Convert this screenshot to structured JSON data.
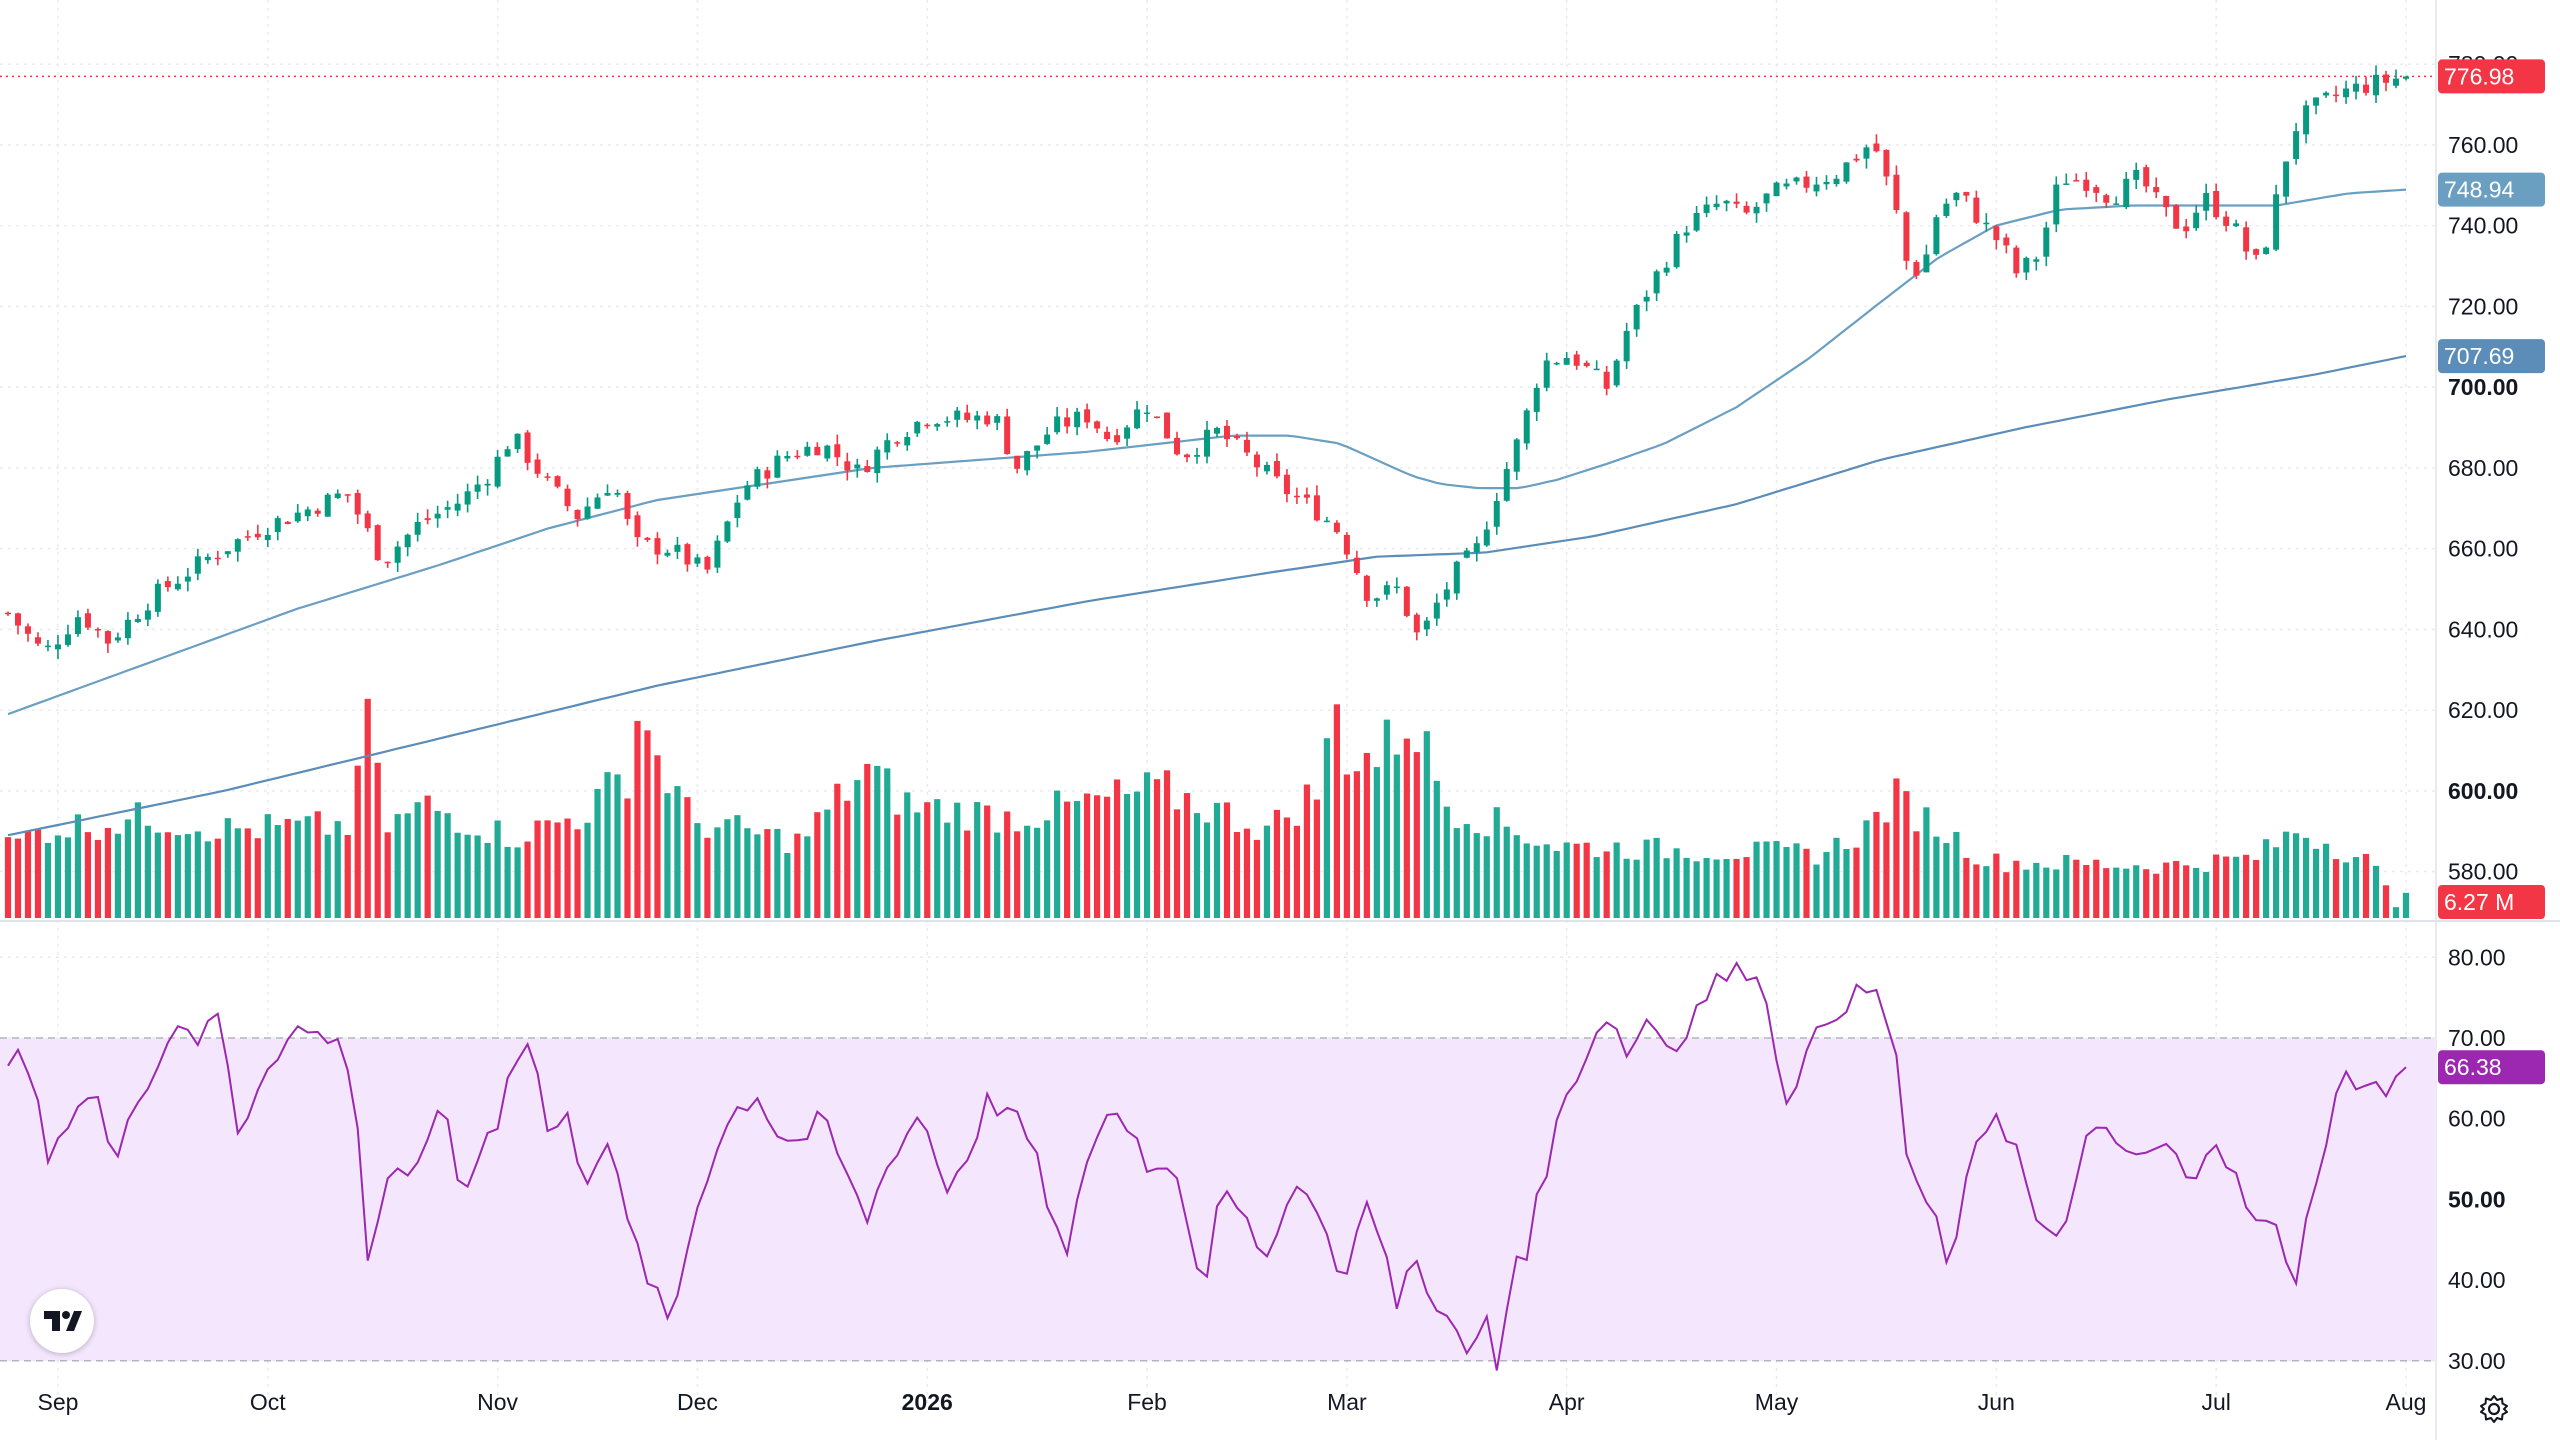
{
  "chart_data": [
    {
      "type": "candlestick",
      "pane": "price",
      "ylim": [
        568,
        786
      ],
      "y_ticks": [
        580,
        600,
        620,
        640,
        660,
        680,
        700,
        720,
        740,
        760,
        780
      ],
      "y_tick_labels": [
        "580.00",
        "600.00",
        "620.00",
        "640.00",
        "660.00",
        "680.00",
        "700.00",
        "720.00",
        "740.00",
        "760.00",
        "780.00"
      ],
      "bold_tick_labels": [
        "600.00",
        "700.00"
      ],
      "x_labels": [
        "Sep",
        "Oct",
        "Nov",
        "Dec",
        "2026",
        "Feb",
        "Mar",
        "Apr",
        "May",
        "Jun",
        "Jul",
        "Aug"
      ],
      "bold_x_labels": [
        "2026"
      ],
      "x_label_dates": [
        "2025-09-02",
        "2025-10-01",
        "2025-11-03",
        "2025-12-01",
        "2026-01-02",
        "2026-02-02",
        "2026-03-02",
        "2026-04-01",
        "2026-05-01",
        "2026-06-01",
        "2026-07-01",
        "2026-08-03"
      ],
      "trading_days": 241,
      "ohlc_close_anchors": [
        [
          0,
          644
        ],
        [
          5,
          634
        ],
        [
          10,
          644
        ],
        [
          14,
          637
        ],
        [
          20,
          648
        ],
        [
          28,
          658
        ],
        [
          35,
          665
        ],
        [
          42,
          670
        ],
        [
          47,
          674
        ],
        [
          52,
          657
        ],
        [
          57,
          666
        ],
        [
          63,
          672
        ],
        [
          67,
          679
        ],
        [
          70,
          688
        ],
        [
          75,
          676
        ],
        [
          79,
          668
        ],
        [
          84,
          677
        ],
        [
          87,
          661
        ],
        [
          92,
          660
        ],
        [
          97,
          654
        ],
        [
          102,
          675
        ],
        [
          108,
          683
        ],
        [
          113,
          686
        ],
        [
          118,
          679
        ],
        [
          123,
          688
        ],
        [
          128,
          693
        ],
        [
          133,
          692
        ],
        [
          137,
          693
        ],
        [
          140,
          680
        ],
        [
          145,
          690
        ],
        [
          150,
          693
        ],
        [
          153,
          687
        ],
        [
          158,
          696
        ],
        [
          163,
          683
        ],
        [
          168,
          689
        ],
        [
          172,
          683
        ],
        [
          177,
          675
        ],
        [
          182,
          669
        ],
        [
          185,
          664
        ],
        [
          189,
          648
        ],
        [
          193,
          650
        ],
        [
          196,
          637
        ],
        [
          198,
          645
        ],
        [
          201,
          654
        ],
        [
          204,
          660
        ],
        [
          207,
          675
        ],
        [
          210,
          688
        ],
        [
          213,
          706
        ],
        [
          217,
          708
        ],
        [
          222,
          700
        ],
        [
          225,
          715
        ],
        [
          228,
          725
        ],
        [
          233,
          740
        ],
        [
          238,
          746
        ],
        [
          241,
          742
        ],
        [
          245,
          748
        ],
        [
          249,
          750
        ],
        [
          254,
          753
        ],
        [
          259,
          761
        ],
        [
          262,
          745
        ],
        [
          264,
          728
        ],
        [
          266,
          730
        ],
        [
          268,
          744
        ],
        [
          271,
          748
        ],
        [
          274,
          741
        ],
        [
          277,
          735
        ],
        [
          279,
          728
        ],
        [
          282,
          733
        ],
        [
          285,
          752
        ],
        [
          289,
          751
        ],
        [
          292,
          747
        ],
        [
          296,
          752
        ],
        [
          299,
          744
        ],
        [
          302,
          739
        ],
        [
          305,
          747
        ],
        [
          309,
          740
        ],
        [
          312,
          730
        ],
        [
          314,
          738
        ],
        [
          316,
          755
        ],
        [
          318,
          766
        ],
        [
          321,
          770
        ],
        [
          324,
          773
        ],
        [
          328,
          775
        ],
        [
          333,
          776.98
        ]
      ],
      "max_high": 778.5,
      "min_low": 630,
      "last_close": 776.98,
      "last_close_label": "776.98",
      "colors": {
        "up": "#26a69a",
        "up_candle": "#089981",
        "down": "#f23645",
        "ma": "#6a9fc1"
      },
      "candle_style": {
        "up_fill": "#089981",
        "down_fill": "#f23645"
      },
      "moving_averages": [
        {
          "period": 50,
          "last_value": 748.94,
          "label": "748.94",
          "color": "#6a9fc1",
          "anchors": [
            [
              0,
              619
            ],
            [
              20,
              632
            ],
            [
              40,
              645
            ],
            [
              60,
              656
            ],
            [
              75,
              665
            ],
            [
              90,
              672
            ],
            [
              105,
              676
            ],
            [
              120,
              680
            ],
            [
              135,
              682
            ],
            [
              150,
              684
            ],
            [
              160,
              686
            ],
            [
              170,
              688
            ],
            [
              178,
              688
            ],
            [
              185,
              686
            ],
            [
              190,
              682
            ],
            [
              195,
              678
            ],
            [
              199,
              676
            ],
            [
              204,
              675
            ],
            [
              210,
              675
            ],
            [
              215,
              677
            ],
            [
              222,
              681
            ],
            [
              230,
              686
            ],
            [
              240,
              695
            ],
            [
              250,
              707
            ],
            [
              260,
              721
            ],
            [
              268,
              732
            ],
            [
              276,
              740
            ],
            [
              285,
              744
            ],
            [
              295,
              745
            ],
            [
              305,
              745
            ],
            [
              315,
              745
            ],
            [
              325,
              748
            ],
            [
              333,
              748.94
            ]
          ]
        },
        {
          "period": 200,
          "last_value": 707.69,
          "label": "707.69",
          "color": "#5b8db8",
          "anchors": [
            [
              0,
              589
            ],
            [
              30,
              600
            ],
            [
              60,
              613
            ],
            [
              90,
              626
            ],
            [
              120,
              637
            ],
            [
              150,
              647
            ],
            [
              175,
              654
            ],
            [
              190,
              658
            ],
            [
              205,
              659
            ],
            [
              220,
              663
            ],
            [
              240,
              671
            ],
            [
              260,
              682
            ],
            [
              280,
              690
            ],
            [
              300,
              697
            ],
            [
              320,
              703
            ],
            [
              333,
              707.69
            ]
          ]
        }
      ],
      "price_line": {
        "value": 776.98,
        "color": "#f23645",
        "style": "dotted"
      }
    },
    {
      "type": "bar",
      "pane": "volume",
      "unit": "M",
      "last_value_label": "6.27 M",
      "last_value": 6.27,
      "series_max": 56,
      "colors": {
        "up": "#22ab94",
        "down": "#f23645"
      },
      "anchors": [
        [
          0,
          18
        ],
        [
          5,
          22
        ],
        [
          20,
          25
        ],
        [
          30,
          22
        ],
        [
          48,
          23
        ],
        [
          50,
          56
        ],
        [
          52,
          22
        ],
        [
          58,
          28
        ],
        [
          70,
          20
        ],
        [
          80,
          26
        ],
        [
          86,
          36
        ],
        [
          88,
          55
        ],
        [
          90,
          40
        ],
        [
          95,
          24
        ],
        [
          110,
          19
        ],
        [
          119,
          37
        ],
        [
          125,
          28
        ],
        [
          140,
          25
        ],
        [
          160,
          32
        ],
        [
          175,
          22
        ],
        [
          182,
          32
        ],
        [
          185,
          55
        ],
        [
          186,
          40
        ],
        [
          190,
          40
        ],
        [
          195,
          50
        ],
        [
          200,
          28
        ],
        [
          215,
          18
        ],
        [
          230,
          17
        ],
        [
          252,
          16
        ],
        [
          258,
          22
        ],
        [
          262,
          30
        ],
        [
          275,
          14
        ],
        [
          300,
          13
        ],
        [
          312,
          15
        ],
        [
          318,
          22
        ],
        [
          328,
          14
        ],
        [
          332,
          2
        ]
      ]
    },
    {
      "type": "line",
      "pane": "rsi",
      "ylim": [
        27,
        84
      ],
      "y_ticks": [
        30,
        40,
        50,
        60,
        70,
        80
      ],
      "y_tick_labels": [
        "30.00",
        "40.00",
        "50.00",
        "60.00",
        "70.00",
        "80.00"
      ],
      "bold_tick_labels": [
        "50.00"
      ],
      "band": [
        30,
        70
      ],
      "band_color": "#f3e6fd",
      "line_color": "#9c27b0",
      "last_value": 66.38,
      "last_value_label": "66.38",
      "anchors": [
        [
          0,
          68
        ],
        [
          3,
          66
        ],
        [
          6,
          53
        ],
        [
          8,
          60
        ],
        [
          12,
          64
        ],
        [
          15,
          53
        ],
        [
          17,
          62
        ],
        [
          21,
          67
        ],
        [
          24,
          73
        ],
        [
          27,
          69
        ],
        [
          29,
          74
        ],
        [
          32,
          58
        ],
        [
          36,
          67
        ],
        [
          40,
          71
        ],
        [
          45,
          70
        ],
        [
          48,
          66
        ],
        [
          50,
          42
        ],
        [
          53,
          54
        ],
        [
          56,
          51
        ],
        [
          60,
          63
        ],
        [
          63,
          50
        ],
        [
          66,
          57
        ],
        [
          68,
          60
        ],
        [
          70,
          68
        ],
        [
          73,
          69
        ],
        [
          75,
          58
        ],
        [
          78,
          60
        ],
        [
          80,
          52
        ],
        [
          83,
          58
        ],
        [
          86,
          47
        ],
        [
          89,
          40
        ],
        [
          92,
          34
        ],
        [
          95,
          47
        ],
        [
          98,
          56
        ],
        [
          101,
          61
        ],
        [
          104,
          63
        ],
        [
          107,
          58
        ],
        [
          110,
          57
        ],
        [
          113,
          60
        ],
        [
          117,
          52
        ],
        [
          119,
          47
        ],
        [
          123,
          56
        ],
        [
          127,
          61
        ],
        [
          130,
          51
        ],
        [
          133,
          55
        ],
        [
          136,
          62
        ],
        [
          139,
          61
        ],
        [
          142,
          57
        ],
        [
          145,
          48
        ],
        [
          147,
          42
        ],
        [
          150,
          56
        ],
        [
          153,
          61
        ],
        [
          156,
          59
        ],
        [
          159,
          53
        ],
        [
          162,
          55
        ],
        [
          164,
          47
        ],
        [
          166,
          38
        ],
        [
          168,
          51
        ],
        [
          171,
          48
        ],
        [
          174,
          43
        ],
        [
          177,
          48
        ],
        [
          180,
          53
        ],
        [
          183,
          45
        ],
        [
          186,
          40
        ],
        [
          188,
          51
        ],
        [
          190,
          46
        ],
        [
          193,
          37
        ],
        [
          195,
          43
        ],
        [
          198,
          38
        ],
        [
          201,
          33
        ],
        [
          203,
          30
        ],
        [
          205,
          36
        ],
        [
          207,
          28
        ],
        [
          209,
          43
        ],
        [
          211,
          44
        ],
        [
          213,
          52
        ],
        [
          216,
          62
        ],
        [
          219,
          68
        ],
        [
          222,
          73
        ],
        [
          225,
          68
        ],
        [
          228,
          73
        ],
        [
          231,
          68
        ],
        [
          234,
          73
        ],
        [
          237,
          77
        ],
        [
          240,
          78
        ],
        [
          243,
          79
        ],
        [
          245,
          70
        ],
        [
          247,
          63
        ],
        [
          250,
          68
        ],
        [
          253,
          73
        ],
        [
          256,
          75
        ],
        [
          259,
          76
        ],
        [
          262,
          70
        ],
        [
          264,
          52
        ],
        [
          267,
          49
        ],
        [
          270,
          41
        ],
        [
          273,
          57
        ],
        [
          276,
          61
        ],
        [
          279,
          56
        ],
        [
          282,
          46
        ],
        [
          285,
          44
        ],
        [
          288,
          57
        ],
        [
          291,
          58
        ],
        [
          294,
          56
        ],
        [
          297,
          55
        ],
        [
          300,
          57
        ],
        [
          303,
          51
        ],
        [
          306,
          59
        ],
        [
          309,
          53
        ],
        [
          312,
          47
        ],
        [
          315,
          46
        ],
        [
          318,
          40
        ],
        [
          320,
          52
        ],
        [
          322,
          57
        ],
        [
          324,
          65
        ],
        [
          327,
          65
        ],
        [
          330,
          63
        ],
        [
          333,
          66.38
        ]
      ]
    }
  ]
}
